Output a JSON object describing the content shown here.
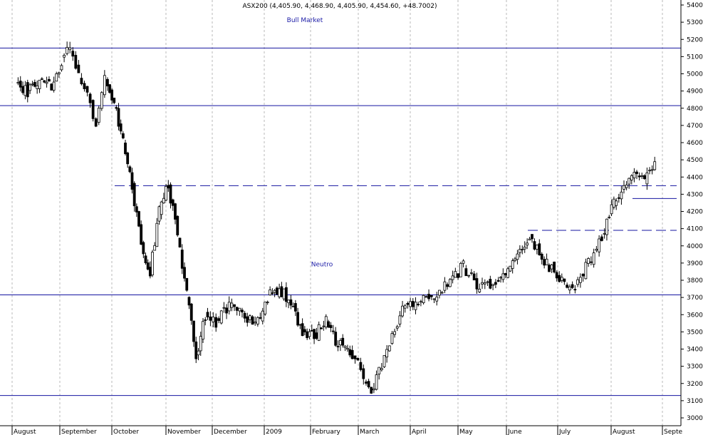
{
  "title": "ASX200 (4,405.90, 4,468.90, 4,405.90, 4,454.60, +48.7002)",
  "colors": {
    "support_line": "#1414a0",
    "grid": "#b8b8b8",
    "candle": "#000000",
    "background": "#ffffff"
  },
  "chart_data": {
    "type": "candlestick",
    "grid": true,
    "ylim": [
      2950,
      5450
    ],
    "y_ticks": [
      3000,
      3100,
      3200,
      3300,
      3400,
      3500,
      3600,
      3700,
      3800,
      3900,
      4000,
      4100,
      4200,
      4300,
      4400,
      4500,
      4600,
      4700,
      4800,
      4900,
      5000,
      5100,
      5200,
      5300,
      5400
    ],
    "months": [
      "August",
      "September",
      "October",
      "November",
      "December",
      "2009",
      "February",
      "March",
      "April",
      "May",
      "June",
      "July",
      "August",
      "Septe"
    ],
    "annotations": [
      {
        "text": "Bull Market",
        "y": 5300
      },
      {
        "text": "Neutro",
        "y": 3880
      }
    ],
    "horizontal_lines": [
      {
        "y": 5150,
        "style": "solid",
        "span": "full"
      },
      {
        "y": 4815,
        "style": "solid",
        "span": "full"
      },
      {
        "y": 3715,
        "style": "solid",
        "span": "full"
      },
      {
        "y": 3130,
        "style": "solid",
        "span": "full"
      },
      {
        "y": 4350,
        "style": "dashed",
        "from_month": "October"
      },
      {
        "y": 4090,
        "style": "dashed",
        "from_month": "June"
      },
      {
        "y": 4275,
        "style": "solid",
        "from_month": "August"
      }
    ],
    "close_path": [
      [
        "August",
        4950
      ],
      [
        "August",
        4900
      ],
      [
        "August",
        4980
      ],
      [
        "August",
        4920
      ],
      [
        "September",
        5080
      ],
      [
        "September",
        5140
      ],
      [
        "September",
        4980
      ],
      [
        "September",
        4880
      ],
      [
        "September",
        4720
      ],
      [
        "September",
        4960
      ],
      [
        "October",
        4820
      ],
      [
        "October",
        4600
      ],
      [
        "October",
        4350
      ],
      [
        "October",
        4000
      ],
      [
        "October",
        3850
      ],
      [
        "October",
        4200
      ],
      [
        "November",
        4350
      ],
      [
        "November",
        4050
      ],
      [
        "November",
        3720
      ],
      [
        "November",
        3350
      ],
      [
        "November",
        3600
      ],
      [
        "December",
        3560
      ],
      [
        "December",
        3650
      ],
      [
        "December",
        3600
      ],
      [
        "December",
        3560
      ],
      [
        "2009",
        3700
      ],
      [
        "2009",
        3760
      ],
      [
        "2009",
        3650
      ],
      [
        "2009",
        3500
      ],
      [
        "February",
        3480
      ],
      [
        "February",
        3560
      ],
      [
        "February",
        3430
      ],
      [
        "February",
        3380
      ],
      [
        "March",
        3280
      ],
      [
        "March",
        3160
      ],
      [
        "March",
        3300
      ],
      [
        "March",
        3500
      ],
      [
        "March",
        3620
      ],
      [
        "April",
        3680
      ],
      [
        "April",
        3700
      ],
      [
        "April",
        3780
      ],
      [
        "May",
        3880
      ],
      [
        "May",
        3760
      ],
      [
        "May",
        3800
      ],
      [
        "June",
        3900
      ],
      [
        "June",
        4050
      ],
      [
        "June",
        3900
      ],
      [
        "July",
        3800
      ],
      [
        "July",
        3760
      ],
      [
        "July",
        3900
      ],
      [
        "July",
        4060
      ],
      [
        "August",
        4250
      ],
      [
        "August",
        4330
      ],
      [
        "August",
        4420
      ],
      [
        "August",
        4380
      ],
      [
        "August",
        4455
      ]
    ]
  }
}
